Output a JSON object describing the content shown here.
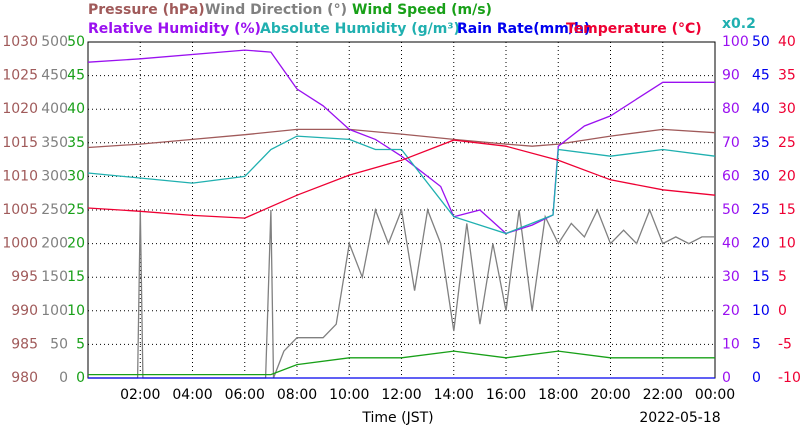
{
  "chart_data": {
    "type": "line",
    "xlabel": "Time (JST)",
    "date": "2022-05-18",
    "note": "x0.2",
    "xlim": [
      0,
      24
    ],
    "xticks": [
      {
        "value": 2,
        "label": "02:00"
      },
      {
        "value": 4,
        "label": "04:00"
      },
      {
        "value": 6,
        "label": "06:00"
      },
      {
        "value": 8,
        "label": "08:00"
      },
      {
        "value": 10,
        "label": "10:00"
      },
      {
        "value": 12,
        "label": "12:00"
      },
      {
        "value": 14,
        "label": "14:00"
      },
      {
        "value": 16,
        "label": "16:00"
      },
      {
        "value": 18,
        "label": "18:00"
      },
      {
        "value": 20,
        "label": "20:00"
      },
      {
        "value": 22,
        "label": "22:00"
      },
      {
        "value": 24,
        "label": "00:00"
      }
    ],
    "grid": true,
    "axes": [
      {
        "side": "left",
        "color": "#a05a5a",
        "lim": [
          980,
          1030
        ],
        "ticks": [
          980,
          985,
          990,
          995,
          1000,
          1005,
          1010,
          1015,
          1020,
          1025,
          1030
        ]
      },
      {
        "side": "left",
        "color": "#808080",
        "lim": [
          0,
          500
        ],
        "ticks": [
          0,
          50,
          100,
          150,
          200,
          250,
          300,
          350,
          400,
          450,
          500
        ]
      },
      {
        "side": "left",
        "color": "#18a018",
        "lim": [
          0,
          50
        ],
        "ticks": [
          0,
          5,
          10,
          15,
          20,
          25,
          30,
          35,
          40,
          45,
          50
        ]
      },
      {
        "side": "right",
        "color": "#9a10f0",
        "lim": [
          0,
          100
        ],
        "ticks": [
          0,
          10,
          20,
          30,
          40,
          50,
          60,
          70,
          80,
          90,
          100
        ]
      },
      {
        "side": "right",
        "color": "#0000ee",
        "lim": [
          0,
          50
        ],
        "ticks": [
          0,
          5,
          10,
          15,
          20,
          25,
          30,
          35,
          40,
          45,
          50
        ]
      },
      {
        "side": "right",
        "color": "#ee0033",
        "lim": [
          -10,
          40
        ],
        "ticks": [
          -10,
          -5,
          0,
          5,
          10,
          15,
          20,
          25,
          30,
          35,
          40
        ]
      }
    ],
    "series": [
      {
        "name": "Pressure (hPa)",
        "color": "#a05a5a",
        "axis": 0,
        "x": [
          0,
          2,
          4,
          6,
          8,
          10,
          12,
          14,
          16,
          17,
          18,
          20,
          22,
          24
        ],
        "values": [
          1014.3,
          1014.8,
          1015.5,
          1016.2,
          1017,
          1017,
          1016.3,
          1015.5,
          1014.8,
          1014.5,
          1014.8,
          1016,
          1017,
          1016.5
        ]
      },
      {
        "name": "Wind Direction (°)",
        "color": "#808080",
        "axis": 1,
        "x": [
          0,
          1.9,
          2,
          2.1,
          6.8,
          7,
          7.1,
          7.5,
          8,
          8.5,
          9,
          9.5,
          10,
          10.5,
          11,
          11.5,
          12,
          12.5,
          13,
          13.5,
          14,
          14.5,
          15,
          15.5,
          16,
          16.5,
          17,
          17.5,
          18,
          18.5,
          19,
          19.5,
          20,
          20.5,
          21,
          21.5,
          22,
          22.5,
          23,
          23.5,
          24
        ],
        "values": [
          0,
          0,
          250,
          0,
          0,
          250,
          0,
          40,
          60,
          60,
          60,
          80,
          200,
          150,
          250,
          200,
          250,
          130,
          250,
          200,
          70,
          230,
          80,
          200,
          100,
          250,
          100,
          240,
          200,
          230,
          210,
          250,
          200,
          220,
          200,
          250,
          200,
          210,
          200,
          210,
          210
        ]
      },
      {
        "name": "Wind Speed (m/s)",
        "color": "#18a018",
        "axis": 2,
        "x": [
          0,
          7,
          8,
          10,
          12,
          14,
          16,
          18,
          20,
          22,
          24
        ],
        "values": [
          0.5,
          0.5,
          2,
          3,
          3,
          4,
          3,
          4,
          3,
          3,
          3
        ]
      },
      {
        "name": "Relative Humidity (%)",
        "color": "#9a10f0",
        "axis": 3,
        "x": [
          0,
          2,
          6,
          7,
          8,
          9,
          10,
          11,
          12,
          13,
          13.5,
          14,
          15,
          16,
          17,
          17.8,
          18,
          19,
          20,
          21,
          22,
          24
        ],
        "values": [
          94,
          95,
          97.6,
          97,
          86,
          81,
          74,
          71,
          66,
          60,
          57,
          48,
          50,
          43,
          45.5,
          48.5,
          69,
          75,
          78,
          83,
          88,
          88
        ]
      },
      {
        "name": "Absolute Humidity (g/m³)",
        "color": "#20b0b0",
        "axis": 3,
        "x": [
          0,
          4,
          6,
          7,
          8,
          10,
          11,
          12,
          14,
          16,
          17.8,
          18,
          20,
          22,
          24
        ],
        "values": [
          61,
          58,
          60,
          68,
          72,
          71,
          68,
          68,
          48,
          43,
          48.5,
          68,
          66,
          68,
          66
        ]
      },
      {
        "name": "Rain Rate(mm/h)",
        "color": "#0000ee",
        "axis": 4,
        "x": [
          0,
          24
        ],
        "values": [
          0,
          0
        ]
      },
      {
        "name": "Temperature (°C)",
        "color": "#ee0033",
        "axis": 5,
        "x": [
          0,
          2,
          4,
          6,
          8,
          10,
          12,
          14,
          16,
          18,
          20,
          22,
          24
        ],
        "values": [
          15.3,
          14.8,
          14.2,
          13.8,
          17.2,
          20.2,
          22.4,
          25.4,
          24.5,
          22.4,
          19.5,
          18,
          17.2
        ]
      }
    ]
  }
}
